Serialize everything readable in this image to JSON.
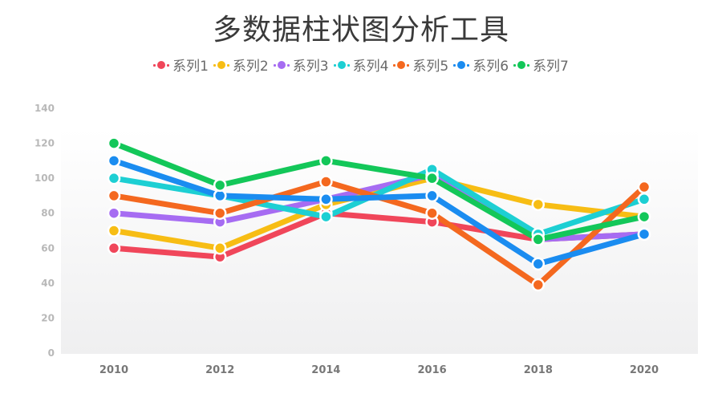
{
  "title": "多数据柱状图分析工具",
  "chart_data": {
    "type": "line",
    "title": "多数据柱状图分析工具",
    "xlabel": "",
    "ylabel": "",
    "categories": [
      "2010",
      "2012",
      "2014",
      "2016",
      "2018",
      "2020"
    ],
    "ylim": [
      0,
      140
    ],
    "yticks": [
      0,
      20,
      40,
      60,
      80,
      100,
      120,
      140
    ],
    "grid": false,
    "legend_position": "top",
    "series": [
      {
        "name": "系列1",
        "color": "#f0465a",
        "values": [
          60,
          55,
          80,
          75,
          65,
          68
        ]
      },
      {
        "name": "系列2",
        "color": "#f7bd14",
        "values": [
          70,
          60,
          85,
          100,
          85,
          78
        ]
      },
      {
        "name": "系列3",
        "color": "#a66cf2",
        "values": [
          80,
          75,
          88,
          102,
          65,
          68
        ]
      },
      {
        "name": "系列4",
        "color": "#1dcfd3",
        "values": [
          100,
          90,
          78,
          105,
          68,
          88
        ]
      },
      {
        "name": "系列5",
        "color": "#f4681f",
        "values": [
          90,
          80,
          98,
          80,
          39,
          95
        ]
      },
      {
        "name": "系列6",
        "color": "#1a8cf0",
        "values": [
          110,
          90,
          88,
          90,
          51,
          68
        ]
      },
      {
        "name": "系列7",
        "color": "#13c759",
        "values": [
          120,
          96,
          110,
          100,
          65,
          78
        ]
      }
    ]
  },
  "legend": {
    "items": [
      {
        "label": "系列1",
        "color": "#f0465a"
      },
      {
        "label": "系列2",
        "color": "#f7bd14"
      },
      {
        "label": "系列3",
        "color": "#a66cf2"
      },
      {
        "label": "系列4",
        "color": "#1dcfd3"
      },
      {
        "label": "系列5",
        "color": "#f4681f"
      },
      {
        "label": "系列6",
        "color": "#1a8cf0"
      },
      {
        "label": "系列7",
        "color": "#13c759"
      }
    ]
  }
}
